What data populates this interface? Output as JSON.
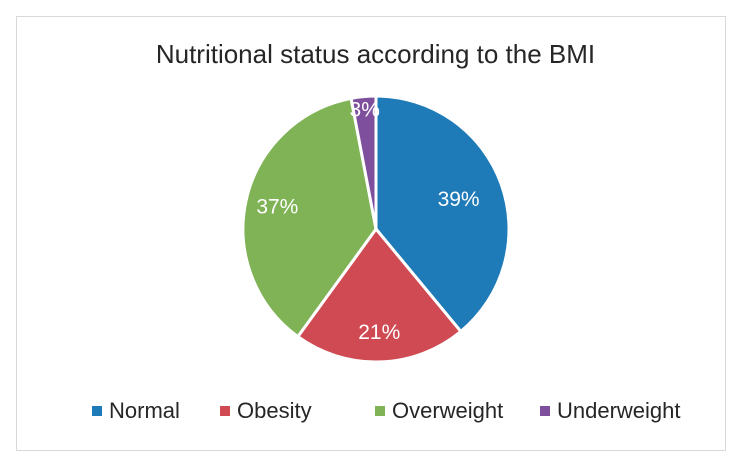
{
  "chart_data": {
    "type": "pie",
    "title": "Nutritional status according to the BMI",
    "categories": [
      "Normal",
      "Obesity",
      "Overweight",
      "Underweight"
    ],
    "values": [
      39,
      21,
      37,
      3
    ],
    "labels": [
      "39%",
      "21%",
      "37%",
      "3%"
    ],
    "colors": [
      "#1f7ab8",
      "#cf4a52",
      "#7fb356",
      "#7d4f9c"
    ],
    "legend_position": "bottom",
    "start_angle": "12 o'clock",
    "direction": "clockwise"
  }
}
